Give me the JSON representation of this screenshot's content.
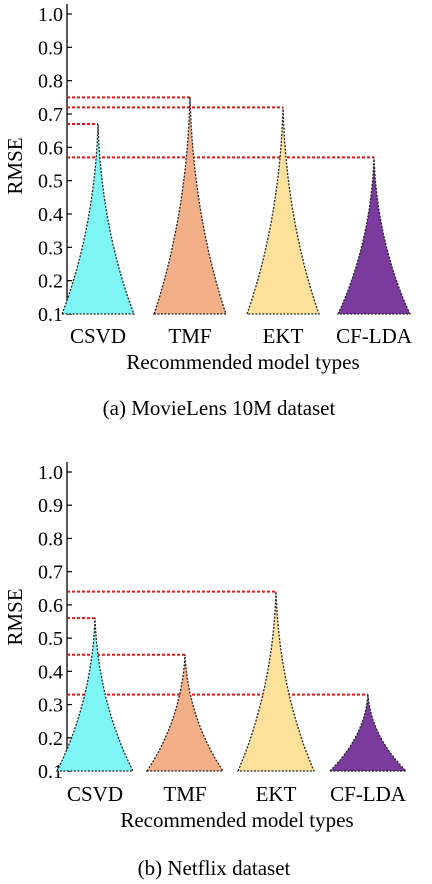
{
  "chart_data": [
    {
      "type": "violin",
      "caption": "(a) MovieLens 10M dataset",
      "xlabel": "Recommended model types",
      "ylabel": "RMSE",
      "ylim": [
        0.1,
        1.0
      ],
      "yticks": [
        "0.1",
        "0.2",
        "0.3",
        "0.4",
        "0.5",
        "0.6",
        "0.7",
        "0.8",
        "0.9",
        "1.0"
      ],
      "categories": [
        "CSVD",
        "TMF",
        "EKT",
        "CF-LDA"
      ],
      "max_values": [
        0.67,
        0.75,
        0.72,
        0.57
      ],
      "reference_lines": [
        0.67,
        0.75,
        0.72,
        0.57
      ],
      "colors": [
        "#7ff6f6",
        "#f3b088",
        "#fde19a",
        "#7a3a9e"
      ]
    },
    {
      "type": "violin",
      "caption": "(b) Netflix dataset",
      "xlabel": "Recommended model types",
      "ylabel": "RMSE",
      "ylim": [
        0.1,
        1.0
      ],
      "yticks": [
        "0.1",
        "0.2",
        "0.3",
        "0.4",
        "0.5",
        "0.6",
        "0.7",
        "0.8",
        "0.9",
        "1.0"
      ],
      "categories": [
        "CSVD",
        "TMF",
        "EKT",
        "CF-LDA"
      ],
      "max_values": [
        0.56,
        0.45,
        0.64,
        0.33
      ],
      "reference_lines": [
        0.56,
        0.45,
        0.64,
        0.33
      ],
      "colors": [
        "#7ff6f6",
        "#f3b088",
        "#fde19a",
        "#7a3a9e"
      ]
    }
  ]
}
